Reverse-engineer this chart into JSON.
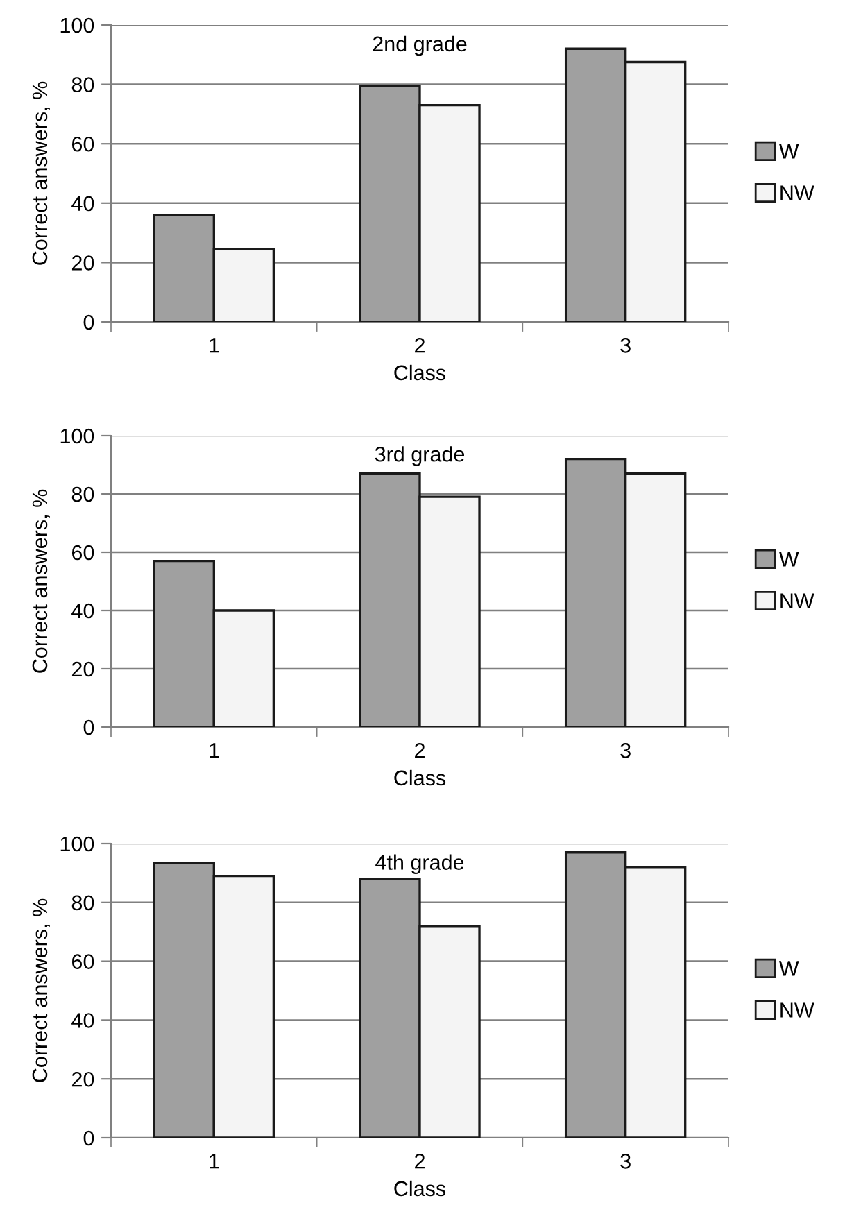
{
  "chart_data": [
    {
      "type": "bar",
      "title": "2nd grade",
      "xlabel": "Class",
      "ylabel": "Correct answers, %",
      "categories": [
        "1",
        "2",
        "3"
      ],
      "series": [
        {
          "name": "W",
          "color": "#a0a0a0",
          "values": [
            36,
            79.5,
            92
          ]
        },
        {
          "name": "NW",
          "color": "#f4f4f4",
          "values": [
            24.5,
            73,
            87.5
          ]
        }
      ],
      "ylim": [
        0,
        100
      ],
      "yticks": [
        0,
        20,
        40,
        60,
        80,
        100
      ],
      "grid": "y",
      "legend": "right"
    },
    {
      "type": "bar",
      "title": "3rd grade",
      "xlabel": "Class",
      "ylabel": "Correct answers, %",
      "categories": [
        "1",
        "2",
        "3"
      ],
      "series": [
        {
          "name": "W",
          "color": "#a0a0a0",
          "values": [
            57,
            87,
            92
          ]
        },
        {
          "name": "NW",
          "color": "#f4f4f4",
          "values": [
            40,
            79,
            87
          ]
        }
      ],
      "ylim": [
        0,
        100
      ],
      "yticks": [
        0,
        20,
        40,
        60,
        80,
        100
      ],
      "grid": "y",
      "legend": "right"
    },
    {
      "type": "bar",
      "title": "4th grade",
      "xlabel": "Class",
      "ylabel": "Correct answers, %",
      "categories": [
        "1",
        "2",
        "3"
      ],
      "series": [
        {
          "name": "W",
          "color": "#a0a0a0",
          "values": [
            93.5,
            88,
            97
          ]
        },
        {
          "name": "NW",
          "color": "#f4f4f4",
          "values": [
            89,
            72,
            92
          ]
        }
      ],
      "ylim": [
        0,
        100
      ],
      "yticks": [
        0,
        20,
        40,
        60,
        80,
        100
      ],
      "grid": "y",
      "legend": "right"
    }
  ]
}
